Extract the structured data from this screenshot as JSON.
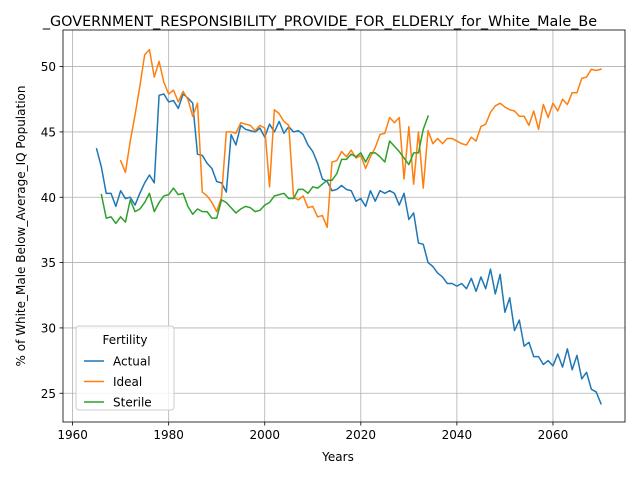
{
  "chart_data": {
    "type": "line",
    "title": "_GOVERNMENT_RESPONSIBILITY_PROVIDE_FOR_ELDERLY_for_White_Male_Be",
    "xlabel": "Years",
    "ylabel": "% of White_Male Below_Average_IQ Population",
    "xlim": [
      1958,
      2075
    ],
    "ylim": [
      22.8,
      52.8
    ],
    "xticks": [
      1960,
      1980,
      2000,
      2020,
      2040,
      2060
    ],
    "yticks": [
      25,
      30,
      35,
      40,
      45,
      50
    ],
    "grid": true,
    "legend": {
      "title": "Fertility",
      "placement": "lower-left"
    },
    "series": [
      {
        "name": "Actual",
        "color": "#1f77b4",
        "points": [
          [
            1965,
            43.7
          ],
          [
            1966,
            42.3
          ],
          [
            1967,
            40.3
          ],
          [
            1968,
            40.3
          ],
          [
            1969,
            39.3
          ],
          [
            1970,
            40.5
          ],
          [
            1971,
            39.9
          ],
          [
            1972,
            40.0
          ],
          [
            1973,
            39.4
          ],
          [
            1974,
            40.3
          ],
          [
            1975,
            41.1
          ],
          [
            1976,
            41.7
          ],
          [
            1977,
            41.1
          ],
          [
            1978,
            47.8
          ],
          [
            1979,
            47.9
          ],
          [
            1980,
            47.3
          ],
          [
            1981,
            47.4
          ],
          [
            1982,
            46.8
          ],
          [
            1983,
            47.9
          ],
          [
            1984,
            47.6
          ],
          [
            1985,
            47.2
          ],
          [
            1986,
            43.3
          ],
          [
            1987,
            43.2
          ],
          [
            1988,
            42.6
          ],
          [
            1989,
            42.2
          ],
          [
            1990,
            41.2
          ],
          [
            1991,
            41.1
          ],
          [
            1992,
            40.4
          ],
          [
            1993,
            44.8
          ],
          [
            1994,
            44.0
          ],
          [
            1995,
            45.5
          ],
          [
            1996,
            45.2
          ],
          [
            1997,
            45.1
          ],
          [
            1998,
            45.0
          ],
          [
            1999,
            45.3
          ],
          [
            2000,
            44.6
          ],
          [
            2001,
            45.6
          ],
          [
            2002,
            45.0
          ],
          [
            2003,
            45.8
          ],
          [
            2004,
            44.9
          ],
          [
            2005,
            45.4
          ],
          [
            2006,
            45.0
          ],
          [
            2007,
            45.1
          ],
          [
            2008,
            44.8
          ],
          [
            2009,
            44.0
          ],
          [
            2010,
            43.5
          ],
          [
            2011,
            42.6
          ],
          [
            2012,
            41.4
          ],
          [
            2013,
            41.2
          ],
          [
            2014,
            40.5
          ],
          [
            2015,
            40.6
          ],
          [
            2016,
            40.9
          ],
          [
            2017,
            40.6
          ],
          [
            2018,
            40.5
          ],
          [
            2019,
            39.7
          ],
          [
            2020,
            39.9
          ],
          [
            2021,
            39.3
          ],
          [
            2022,
            40.5
          ],
          [
            2023,
            39.7
          ],
          [
            2024,
            40.5
          ],
          [
            2025,
            40.3
          ],
          [
            2026,
            40.5
          ],
          [
            2027,
            40.3
          ],
          [
            2028,
            39.4
          ],
          [
            2029,
            40.3
          ],
          [
            2030,
            38.3
          ],
          [
            2031,
            38.8
          ],
          [
            2032,
            36.5
          ],
          [
            2033,
            36.4
          ],
          [
            2034,
            35.0
          ],
          [
            2035,
            34.7
          ],
          [
            2036,
            34.2
          ],
          [
            2037,
            33.9
          ],
          [
            2038,
            33.4
          ],
          [
            2039,
            33.4
          ],
          [
            2040,
            33.2
          ],
          [
            2041,
            33.4
          ],
          [
            2042,
            33.0
          ],
          [
            2043,
            33.8
          ],
          [
            2044,
            32.8
          ],
          [
            2045,
            33.9
          ],
          [
            2046,
            33.0
          ],
          [
            2047,
            34.5
          ],
          [
            2048,
            32.6
          ],
          [
            2049,
            34.1
          ],
          [
            2050,
            31.2
          ],
          [
            2051,
            32.3
          ],
          [
            2052,
            29.8
          ],
          [
            2053,
            30.6
          ],
          [
            2054,
            28.6
          ],
          [
            2055,
            28.9
          ],
          [
            2056,
            27.8
          ],
          [
            2057,
            27.8
          ],
          [
            2058,
            27.2
          ],
          [
            2059,
            27.5
          ],
          [
            2060,
            27.1
          ],
          [
            2061,
            28.0
          ],
          [
            2062,
            27.0
          ],
          [
            2063,
            28.4
          ],
          [
            2064,
            26.8
          ],
          [
            2065,
            27.9
          ],
          [
            2066,
            26.1
          ],
          [
            2067,
            26.6
          ],
          [
            2068,
            25.3
          ],
          [
            2069,
            25.1
          ],
          [
            2070,
            24.2
          ]
        ]
      },
      {
        "name": "Ideal",
        "color": "#ff7f0e",
        "points": [
          [
            1970,
            42.8
          ],
          [
            1971,
            41.9
          ],
          [
            1972,
            44.3
          ],
          [
            1973,
            46.3
          ],
          [
            1974,
            48.5
          ],
          [
            1975,
            50.9
          ],
          [
            1976,
            51.3
          ],
          [
            1977,
            49.2
          ],
          [
            1978,
            50.4
          ],
          [
            1979,
            48.8
          ],
          [
            1980,
            47.9
          ],
          [
            1981,
            48.2
          ],
          [
            1982,
            47.3
          ],
          [
            1983,
            48.1
          ],
          [
            1984,
            47.5
          ],
          [
            1985,
            46.2
          ],
          [
            1986,
            47.2
          ],
          [
            1987,
            40.4
          ],
          [
            1988,
            40.1
          ],
          [
            1989,
            39.6
          ],
          [
            1990,
            38.9
          ],
          [
            1991,
            40.0
          ],
          [
            1992,
            45.0
          ],
          [
            1993,
            45.0
          ],
          [
            1994,
            44.9
          ],
          [
            1995,
            45.7
          ],
          [
            1996,
            45.6
          ],
          [
            1997,
            45.5
          ],
          [
            1998,
            45.1
          ],
          [
            1999,
            45.5
          ],
          [
            2000,
            45.3
          ],
          [
            2001,
            40.8
          ],
          [
            2002,
            46.7
          ],
          [
            2003,
            46.4
          ],
          [
            2004,
            45.8
          ],
          [
            2005,
            45.5
          ],
          [
            2006,
            40.0
          ],
          [
            2007,
            39.8
          ],
          [
            2008,
            40.1
          ],
          [
            2009,
            39.2
          ],
          [
            2010,
            39.3
          ],
          [
            2011,
            38.5
          ],
          [
            2012,
            38.6
          ],
          [
            2013,
            37.7
          ],
          [
            2014,
            42.7
          ],
          [
            2015,
            42.8
          ],
          [
            2016,
            43.5
          ],
          [
            2017,
            43.1
          ],
          [
            2018,
            43.6
          ],
          [
            2019,
            43.0
          ],
          [
            2020,
            43.2
          ],
          [
            2021,
            42.2
          ],
          [
            2022,
            43.1
          ],
          [
            2023,
            43.8
          ],
          [
            2024,
            44.8
          ],
          [
            2025,
            44.9
          ],
          [
            2026,
            46.1
          ],
          [
            2027,
            45.7
          ],
          [
            2028,
            46.1
          ],
          [
            2029,
            41.4
          ],
          [
            2030,
            45.4
          ],
          [
            2031,
            41.0
          ],
          [
            2032,
            45.0
          ],
          [
            2033,
            40.7
          ],
          [
            2034,
            45.1
          ],
          [
            2035,
            44.1
          ],
          [
            2036,
            44.5
          ],
          [
            2037,
            44.1
          ],
          [
            2038,
            44.5
          ],
          [
            2039,
            44.5
          ],
          [
            2040,
            44.3
          ],
          [
            2041,
            44.1
          ],
          [
            2042,
            44.0
          ],
          [
            2043,
            44.6
          ],
          [
            2044,
            44.3
          ],
          [
            2045,
            45.4
          ],
          [
            2046,
            45.6
          ],
          [
            2047,
            46.5
          ],
          [
            2048,
            47.0
          ],
          [
            2049,
            47.2
          ],
          [
            2050,
            46.9
          ],
          [
            2051,
            46.7
          ],
          [
            2052,
            46.6
          ],
          [
            2053,
            46.2
          ],
          [
            2054,
            46.2
          ],
          [
            2055,
            45.5
          ],
          [
            2056,
            46.6
          ],
          [
            2057,
            45.2
          ],
          [
            2058,
            47.1
          ],
          [
            2059,
            46.1
          ],
          [
            2060,
            47.2
          ],
          [
            2061,
            46.6
          ],
          [
            2062,
            47.5
          ],
          [
            2063,
            47.1
          ],
          [
            2064,
            48.0
          ],
          [
            2065,
            48.0
          ],
          [
            2066,
            49.1
          ],
          [
            2067,
            49.2
          ],
          [
            2068,
            49.8
          ],
          [
            2069,
            49.7
          ],
          [
            2070,
            49.8
          ]
        ]
      },
      {
        "name": "Sterile",
        "color": "#2ca02c",
        "points": [
          [
            1966,
            40.2
          ],
          [
            1967,
            38.4
          ],
          [
            1968,
            38.5
          ],
          [
            1969,
            38.0
          ],
          [
            1970,
            38.5
          ],
          [
            1971,
            38.1
          ],
          [
            1972,
            39.8
          ],
          [
            1973,
            38.9
          ],
          [
            1974,
            39.1
          ],
          [
            1975,
            39.6
          ],
          [
            1976,
            40.3
          ],
          [
            1977,
            38.9
          ],
          [
            1978,
            39.6
          ],
          [
            1979,
            40.1
          ],
          [
            1980,
            40.2
          ],
          [
            1981,
            40.7
          ],
          [
            1982,
            40.2
          ],
          [
            1983,
            40.3
          ],
          [
            1984,
            39.3
          ],
          [
            1985,
            38.7
          ],
          [
            1986,
            39.1
          ],
          [
            1987,
            38.9
          ],
          [
            1988,
            38.9
          ],
          [
            1989,
            38.4
          ],
          [
            1990,
            38.4
          ],
          [
            1991,
            39.8
          ],
          [
            1992,
            39.6
          ],
          [
            1993,
            39.2
          ],
          [
            1994,
            38.8
          ],
          [
            1995,
            39.1
          ],
          [
            1996,
            39.3
          ],
          [
            1997,
            39.2
          ],
          [
            1998,
            38.9
          ],
          [
            1999,
            39.0
          ],
          [
            2000,
            39.4
          ],
          [
            2001,
            39.6
          ],
          [
            2002,
            40.1
          ],
          [
            2003,
            40.2
          ],
          [
            2004,
            40.3
          ],
          [
            2005,
            39.9
          ],
          [
            2006,
            39.9
          ],
          [
            2007,
            40.6
          ],
          [
            2008,
            40.6
          ],
          [
            2009,
            40.3
          ],
          [
            2010,
            40.8
          ],
          [
            2011,
            40.7
          ],
          [
            2012,
            41.0
          ],
          [
            2013,
            41.3
          ],
          [
            2014,
            41.3
          ],
          [
            2015,
            41.8
          ],
          [
            2016,
            42.9
          ],
          [
            2017,
            42.9
          ],
          [
            2018,
            43.3
          ],
          [
            2019,
            43.1
          ],
          [
            2020,
            43.4
          ],
          [
            2021,
            42.7
          ],
          [
            2022,
            43.4
          ],
          [
            2023,
            43.4
          ],
          [
            2024,
            43.1
          ],
          [
            2025,
            42.7
          ],
          [
            2026,
            44.3
          ],
          [
            2027,
            43.9
          ],
          [
            2028,
            43.5
          ],
          [
            2029,
            43.0
          ],
          [
            2030,
            42.5
          ],
          [
            2031,
            43.4
          ],
          [
            2032,
            43.4
          ],
          [
            2033,
            45.2
          ],
          [
            2034,
            46.2
          ]
        ]
      }
    ]
  }
}
